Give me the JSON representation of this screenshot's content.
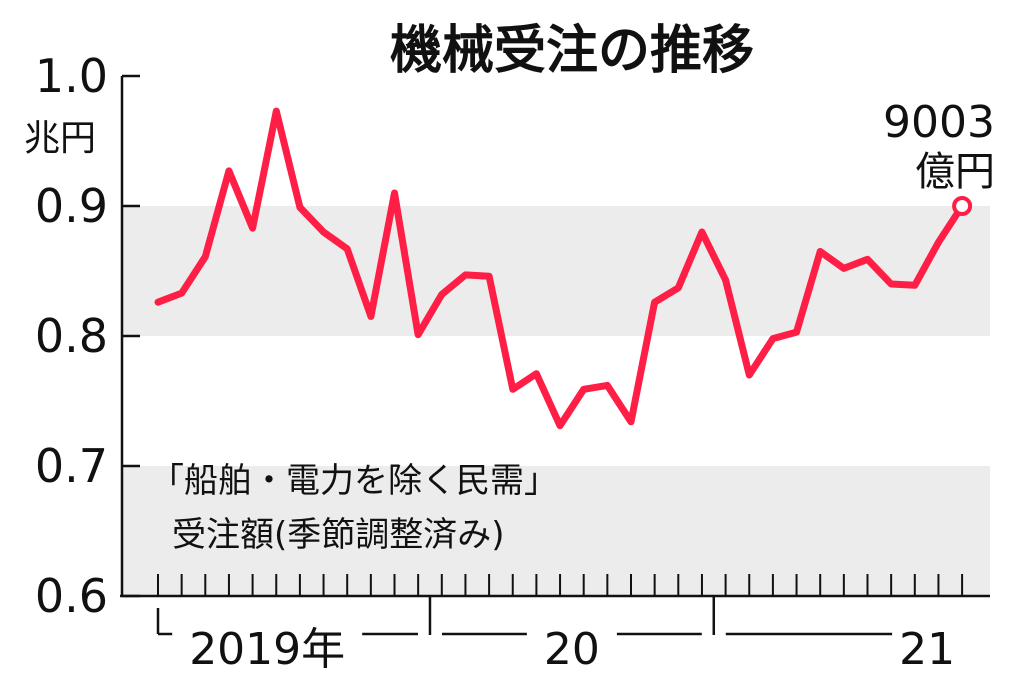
{
  "chart_data": {
    "type": "line",
    "title": "機械受注の推移",
    "ylabel": "兆円",
    "ylim": [
      0.6,
      1.0
    ],
    "y_ticks": [
      "0.6",
      "0.7",
      "0.8",
      "0.9",
      "1.0"
    ],
    "shaded_bands": [
      [
        0.6,
        0.7
      ],
      [
        0.8,
        0.9
      ]
    ],
    "annotation": {
      "line1": "「船舶・電力を除く民需」",
      "line2": "受注額(季節調整済み)"
    },
    "last_point_label": {
      "value": "9003",
      "unit": "億円"
    },
    "year_labels": [
      "2019年",
      "20",
      "21"
    ],
    "x": [
      "2019-01",
      "2019-02",
      "2019-03",
      "2019-04",
      "2019-05",
      "2019-06",
      "2019-07",
      "2019-08",
      "2019-09",
      "2019-10",
      "2019-11",
      "2019-12",
      "2020-01",
      "2020-02",
      "2020-03",
      "2020-04",
      "2020-05",
      "2020-06",
      "2020-07",
      "2020-08",
      "2020-09",
      "2020-10",
      "2020-11",
      "2020-12",
      "2021-01",
      "2021-02",
      "2021-03",
      "2021-04",
      "2021-05",
      "2021-06",
      "2021-07",
      "2021-08",
      "2021-09",
      "2021-10",
      "2021-11"
    ],
    "series": [
      {
        "color": "#ff1e46",
        "values": [
          0.826,
          0.833,
          0.861,
          0.927,
          0.883,
          0.973,
          0.899,
          0.88,
          0.867,
          0.815,
          0.91,
          0.801,
          0.832,
          0.847,
          0.846,
          0.759,
          0.771,
          0.731,
          0.759,
          0.762,
          0.734,
          0.826,
          0.837,
          0.88,
          0.843,
          0.77,
          0.798,
          0.803,
          0.865,
          0.852,
          0.859,
          0.84,
          0.839,
          0.872,
          0.9
        ]
      }
    ]
  }
}
